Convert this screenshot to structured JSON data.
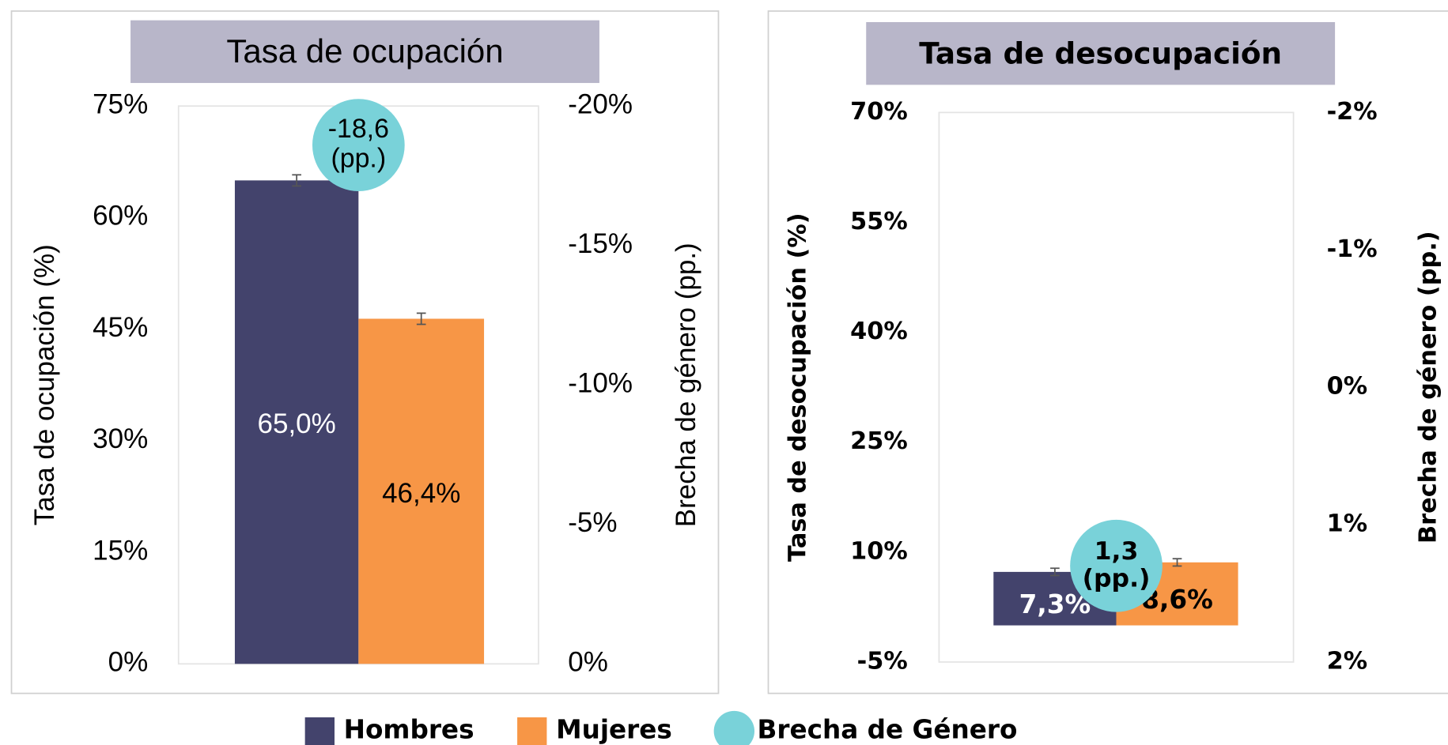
{
  "chart_data": [
    {
      "type": "bar",
      "title": "Tasa de ocupación",
      "ylabel": "Tasa de ocupación (%)",
      "y2label": "Brecha de género (pp.)",
      "categories": [
        ""
      ],
      "series": [
        {
          "name": "Hombres",
          "color": "#43436c",
          "values": [
            65.0
          ],
          "value_labels": [
            "65,0%"
          ],
          "errors": [
            0.75
          ]
        },
        {
          "name": "Mujeres",
          "color": "#f79646",
          "values": [
            46.4
          ],
          "value_labels": [
            "46,4%"
          ],
          "errors": [
            0.75
          ]
        }
      ],
      "gap": {
        "name": "Brecha de Género",
        "color": "#79d2d9",
        "value": -18.6,
        "value_label": "-18,6\n(pp.)",
        "axis": "y2"
      },
      "ylim": [
        0,
        75
      ],
      "yticks": [
        {
          "value": 0,
          "label": "0%"
        },
        {
          "value": 15,
          "label": "15%"
        },
        {
          "value": 30,
          "label": "30%"
        },
        {
          "value": 45,
          "label": "45%"
        },
        {
          "value": 60,
          "label": "60%"
        },
        {
          "value": 75,
          "label": "75%"
        }
      ],
      "y2lim": [
        0,
        -20
      ],
      "y2ticks": [
        {
          "value": 0,
          "label": "0%"
        },
        {
          "value": -5,
          "label": "-5%"
        },
        {
          "value": -10,
          "label": "-10%"
        },
        {
          "value": -15,
          "label": "-15%"
        },
        {
          "value": -20,
          "label": "-20%"
        }
      ]
    },
    {
      "type": "bar",
      "title": "Tasa de desocupación",
      "ylabel": "Tasa de desocupación (%)",
      "y2label": "Brecha de género (pp.)",
      "categories": [
        ""
      ],
      "series": [
        {
          "name": "Hombres",
          "color": "#43436c",
          "values": [
            7.3
          ],
          "value_labels": [
            "7,3%"
          ],
          "errors": [
            0.5
          ]
        },
        {
          "name": "Mujeres",
          "color": "#f79646",
          "values": [
            8.6
          ],
          "value_labels": [
            "8,6%"
          ],
          "errors": [
            0.5
          ]
        }
      ],
      "gap": {
        "name": "Brecha de Género",
        "color": "#79d2d9",
        "value": 1.3,
        "value_label": "1,3\n(pp.)",
        "axis": "y2"
      },
      "ylim": [
        -5,
        70
      ],
      "yticks": [
        {
          "value": -5,
          "label": "-5%"
        },
        {
          "value": 10,
          "label": "10%"
        },
        {
          "value": 25,
          "label": "25%"
        },
        {
          "value": 40,
          "label": "40%"
        },
        {
          "value": 55,
          "label": "55%"
        },
        {
          "value": 70,
          "label": "70%"
        }
      ],
      "y2lim": [
        2,
        -2
      ],
      "y2ticks": [
        {
          "value": 2,
          "label": "2%"
        },
        {
          "value": 1,
          "label": "1%"
        },
        {
          "value": 0,
          "label": "0%"
        },
        {
          "value": -1,
          "label": "-1%"
        },
        {
          "value": -2,
          "label": "-2%"
        }
      ]
    }
  ]
}
